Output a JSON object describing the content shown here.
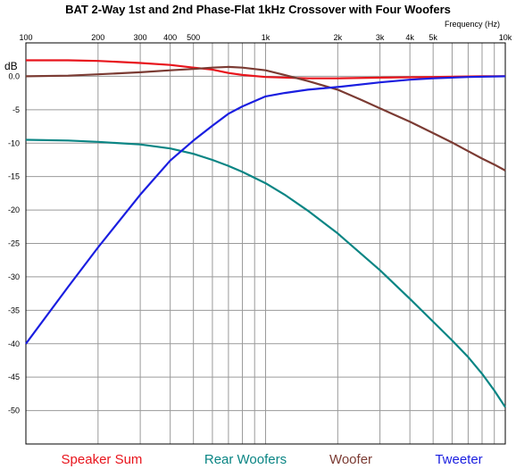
{
  "chart_data": {
    "type": "line",
    "title": "BAT 2-Way 1st and 2nd Phase-Flat 1kHz Crossover with Four Woofers",
    "x_unit_label": "Frequency   (Hz)",
    "y_unit_label": "dB",
    "x_scale": "log",
    "xlim": [
      100,
      10000
    ],
    "ylim": [
      -55,
      5
    ],
    "grid": true,
    "legend_placement": "bottom",
    "x_ticks": [
      {
        "value": 100,
        "label": "100"
      },
      {
        "value": 200,
        "label": "200"
      },
      {
        "value": 300,
        "label": "300"
      },
      {
        "value": 400,
        "label": "400"
      },
      {
        "value": 500,
        "label": "500"
      },
      {
        "value": 1000,
        "label": "1k"
      },
      {
        "value": 2000,
        "label": "2k"
      },
      {
        "value": 3000,
        "label": "3k"
      },
      {
        "value": 4000,
        "label": "4k"
      },
      {
        "value": 5000,
        "label": "5k"
      },
      {
        "value": 10000,
        "label": "10k"
      }
    ],
    "x_minor_grid": [
      600,
      700,
      800,
      900,
      6000,
      7000,
      8000,
      9000
    ],
    "y_ticks": [
      {
        "value": 0,
        "label": "0.0"
      },
      {
        "value": -5,
        "label": "-5"
      },
      {
        "value": -10,
        "label": "-10"
      },
      {
        "value": -15,
        "label": "-15"
      },
      {
        "value": -20,
        "label": "-20"
      },
      {
        "value": -25,
        "label": "-25"
      },
      {
        "value": -30,
        "label": "-30"
      },
      {
        "value": -35,
        "label": "-35"
      },
      {
        "value": -40,
        "label": "-40"
      },
      {
        "value": -45,
        "label": "-45"
      },
      {
        "value": -50,
        "label": "-50"
      }
    ],
    "y_grid": [
      5,
      0,
      -5,
      -10,
      -15,
      -20,
      -25,
      -30,
      -35,
      -40,
      -45,
      -50,
      -55
    ],
    "series": [
      {
        "name": "Speaker Sum",
        "color": "#e8141c",
        "points": [
          [
            100,
            2.4
          ],
          [
            150,
            2.4
          ],
          [
            200,
            2.3
          ],
          [
            300,
            2.0
          ],
          [
            400,
            1.7
          ],
          [
            500,
            1.3
          ],
          [
            600,
            1.0
          ],
          [
            700,
            0.5
          ],
          [
            800,
            0.2
          ],
          [
            1000,
            -0.1
          ],
          [
            1500,
            -0.3
          ],
          [
            2000,
            -0.3
          ],
          [
            3000,
            -0.2
          ],
          [
            5000,
            -0.1
          ],
          [
            8000,
            0.0
          ],
          [
            10000,
            0.0
          ]
        ]
      },
      {
        "name": "Rear Woofers",
        "color": "#0a8584",
        "points": [
          [
            100,
            -9.5
          ],
          [
            150,
            -9.6
          ],
          [
            200,
            -9.8
          ],
          [
            300,
            -10.2
          ],
          [
            400,
            -10.8
          ],
          [
            500,
            -11.6
          ],
          [
            600,
            -12.5
          ],
          [
            700,
            -13.4
          ],
          [
            800,
            -14.3
          ],
          [
            1000,
            -16.0
          ],
          [
            1200,
            -17.7
          ],
          [
            1500,
            -20.1
          ],
          [
            2000,
            -23.5
          ],
          [
            3000,
            -29.0
          ],
          [
            4000,
            -33.3
          ],
          [
            5000,
            -36.7
          ],
          [
            6000,
            -39.5
          ],
          [
            7000,
            -42.0
          ],
          [
            8000,
            -44.5
          ],
          [
            9000,
            -47.0
          ],
          [
            10000,
            -49.5
          ]
        ]
      },
      {
        "name": "Woofer",
        "color": "#7b3b33",
        "points": [
          [
            100,
            0.0
          ],
          [
            150,
            0.1
          ],
          [
            200,
            0.3
          ],
          [
            300,
            0.6
          ],
          [
            400,
            0.9
          ],
          [
            500,
            1.1
          ],
          [
            600,
            1.3
          ],
          [
            700,
            1.4
          ],
          [
            800,
            1.3
          ],
          [
            1000,
            0.9
          ],
          [
            1200,
            0.2
          ],
          [
            1500,
            -0.7
          ],
          [
            2000,
            -2.0
          ],
          [
            2500,
            -3.5
          ],
          [
            3000,
            -4.8
          ],
          [
            4000,
            -6.8
          ],
          [
            5000,
            -8.5
          ],
          [
            6000,
            -9.9
          ],
          [
            7000,
            -11.2
          ],
          [
            8000,
            -12.3
          ],
          [
            9000,
            -13.2
          ],
          [
            10000,
            -14.1
          ]
        ]
      },
      {
        "name": "Tweeter",
        "color": "#1a1ee0",
        "points": [
          [
            100,
            -40.0
          ],
          [
            150,
            -31.5
          ],
          [
            200,
            -25.6
          ],
          [
            300,
            -17.7
          ],
          [
            400,
            -12.6
          ],
          [
            500,
            -9.6
          ],
          [
            600,
            -7.4
          ],
          [
            700,
            -5.6
          ],
          [
            800,
            -4.5
          ],
          [
            1000,
            -3.0
          ],
          [
            1200,
            -2.5
          ],
          [
            1500,
            -2.0
          ],
          [
            2000,
            -1.6
          ],
          [
            3000,
            -0.9
          ],
          [
            4000,
            -0.5
          ],
          [
            5000,
            -0.3
          ],
          [
            7000,
            -0.1
          ],
          [
            10000,
            0.0
          ]
        ]
      }
    ]
  }
}
